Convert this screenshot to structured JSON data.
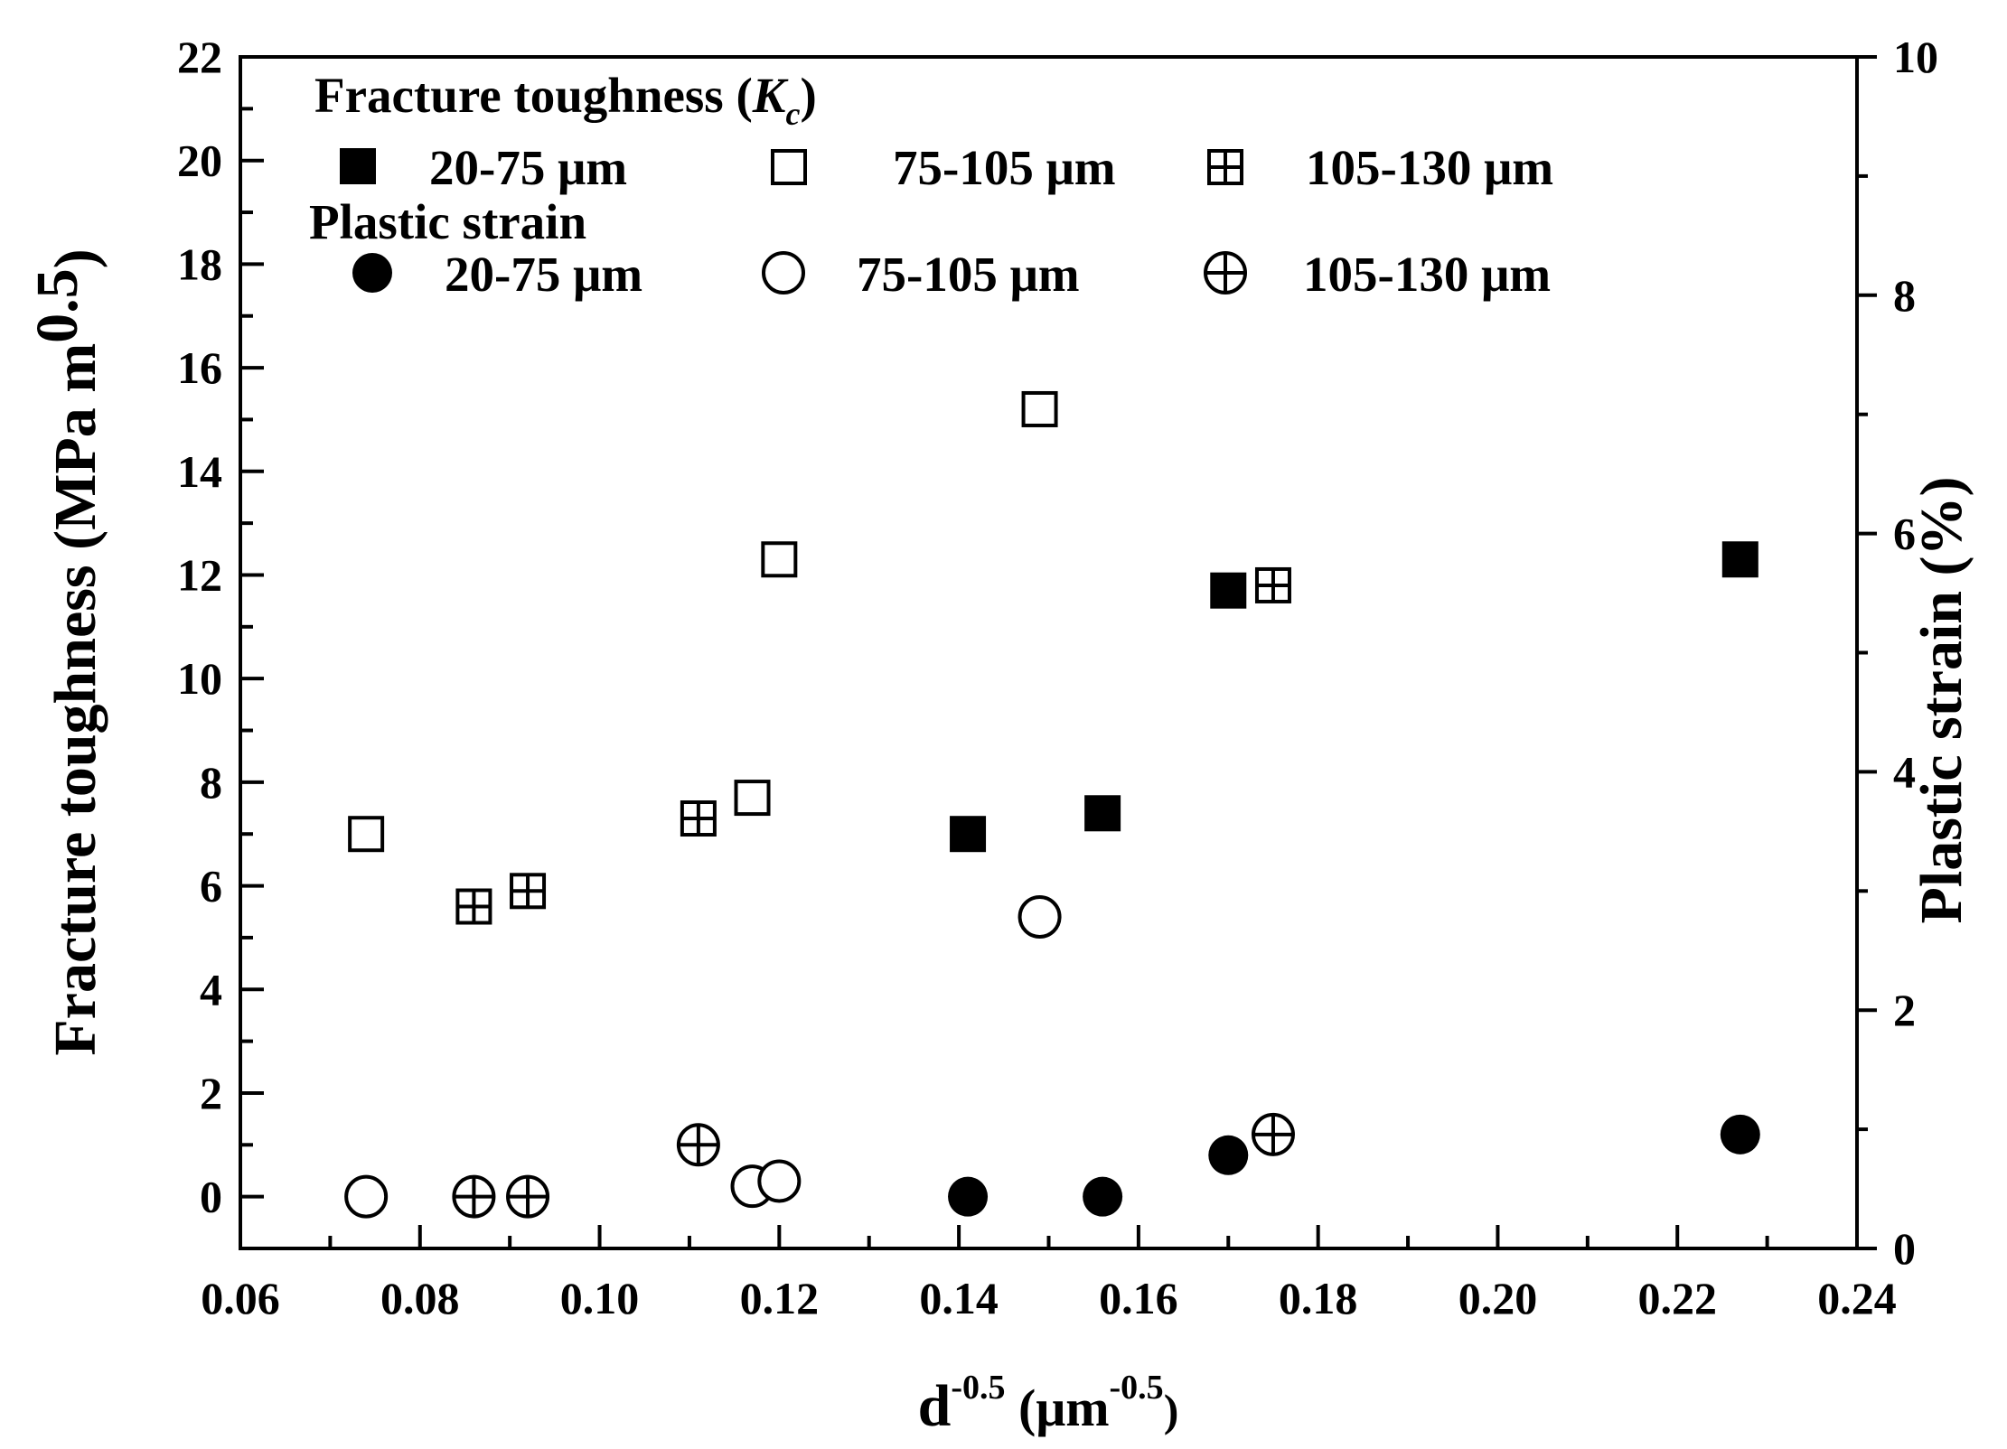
{
  "chart_data": {
    "type": "scatter",
    "title": "",
    "xlabel": {
      "base": "d",
      "exp": "-0.5",
      "unit_open": " (μm",
      "unit_exp": "-0.5",
      "unit_close": ")"
    },
    "ylabel_left": {
      "main": "Fracture toughness (MPa m",
      "exp": "0.5",
      "close": ")"
    },
    "ylabel_right": "Plastic strain (%)",
    "xlim": [
      0.06,
      0.24
    ],
    "ylim_left": [
      -1,
      22
    ],
    "ylim_right": [
      0,
      10
    ],
    "x_ticks": [
      "0.06",
      "0.08",
      "0.10",
      "0.12",
      "0.14",
      "0.16",
      "0.18",
      "0.20",
      "0.22",
      "0.24"
    ],
    "y_left_ticks": [
      "0",
      "2",
      "4",
      "6",
      "8",
      "10",
      "12",
      "14",
      "16",
      "18",
      "20",
      "22"
    ],
    "y_right_ticks": [
      "0",
      "2",
      "4",
      "6",
      "8",
      "10"
    ],
    "legend": {
      "title_fracture": "Fracture toughness (",
      "title_fracture_k": "K",
      "title_fracture_sub": "c",
      "title_fracture_close": ")",
      "title_strain": "Plastic strain",
      "entries": [
        "20-75 μm",
        "75-105 μm",
        "105-130 μm"
      ]
    },
    "series": [
      {
        "name": "Fracture toughness 20-75 μm",
        "axis": "left",
        "marker": "square-filled",
        "points": [
          [
            0.141,
            7.0
          ],
          [
            0.156,
            7.4
          ],
          [
            0.17,
            11.7
          ],
          [
            0.227,
            12.3
          ]
        ]
      },
      {
        "name": "Fracture toughness 75-105 μm",
        "axis": "left",
        "marker": "square-open",
        "points": [
          [
            0.074,
            7.0
          ],
          [
            0.117,
            7.7
          ],
          [
            0.12,
            12.3
          ],
          [
            0.149,
            15.2
          ]
        ]
      },
      {
        "name": "Fracture toughness 105-130 μm",
        "axis": "left",
        "marker": "square-cross",
        "points": [
          [
            0.086,
            5.6
          ],
          [
            0.092,
            5.9
          ],
          [
            0.111,
            7.3
          ],
          [
            0.175,
            11.8
          ]
        ]
      },
      {
        "name": "Plastic strain 20-75 μm",
        "axis": "left",
        "marker": "circle-filled",
        "points": [
          [
            0.141,
            0.0
          ],
          [
            0.156,
            0.0
          ],
          [
            0.17,
            0.8
          ],
          [
            0.227,
            1.2
          ]
        ]
      },
      {
        "name": "Plastic strain 75-105 μm",
        "axis": "left",
        "marker": "circle-open",
        "points": [
          [
            0.074,
            0.0
          ],
          [
            0.117,
            0.2
          ],
          [
            0.12,
            0.3
          ],
          [
            0.149,
            5.4
          ]
        ]
      },
      {
        "name": "Plastic strain 105-130 μm",
        "axis": "left",
        "marker": "circle-cross",
        "points": [
          [
            0.086,
            0.0
          ],
          [
            0.092,
            0.0
          ],
          [
            0.111,
            1.0
          ],
          [
            0.175,
            1.2
          ]
        ]
      }
    ]
  }
}
